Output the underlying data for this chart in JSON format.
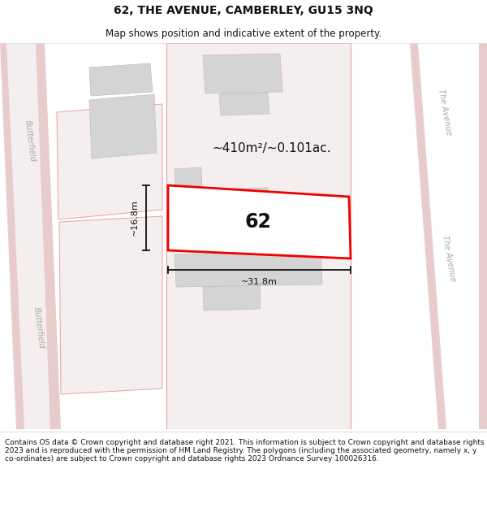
{
  "title": "62, THE AVENUE, CAMBERLEY, GU15 3NQ",
  "subtitle": "Map shows position and indicative extent of the property.",
  "footer": "Contains OS data © Crown copyright and database right 2021. This information is subject to Crown copyright and database rights 2023 and is reproduced with the permission of HM Land Registry. The polygons (including the associated geometry, namely x, y co-ordinates) are subject to Crown copyright and database rights 2023 Ordnance Survey 100026316.",
  "area_label": "~410m²/~0.101ac.",
  "width_label": "~31.8m",
  "height_label": "~16.8m",
  "plot_number": "62",
  "bg_color": "#ffffff",
  "map_bg": "#f7f2f2",
  "road_fill": "#e8cccc",
  "road_inner": "#f7f2f2",
  "building_fill": "#d4d4d4",
  "building_edge": "#c0c0c0",
  "plot_fill": "#ffffff",
  "plot_edge": "#ee0000",
  "block_edge": "#e8a0a0",
  "title_color": "#111111",
  "footer_color": "#111111",
  "dim_color": "#111111",
  "figsize": [
    6.0,
    6.25
  ],
  "dpi": 100,
  "title_fontsize": 10,
  "subtitle_fontsize": 8.5,
  "footer_fontsize": 6.5
}
